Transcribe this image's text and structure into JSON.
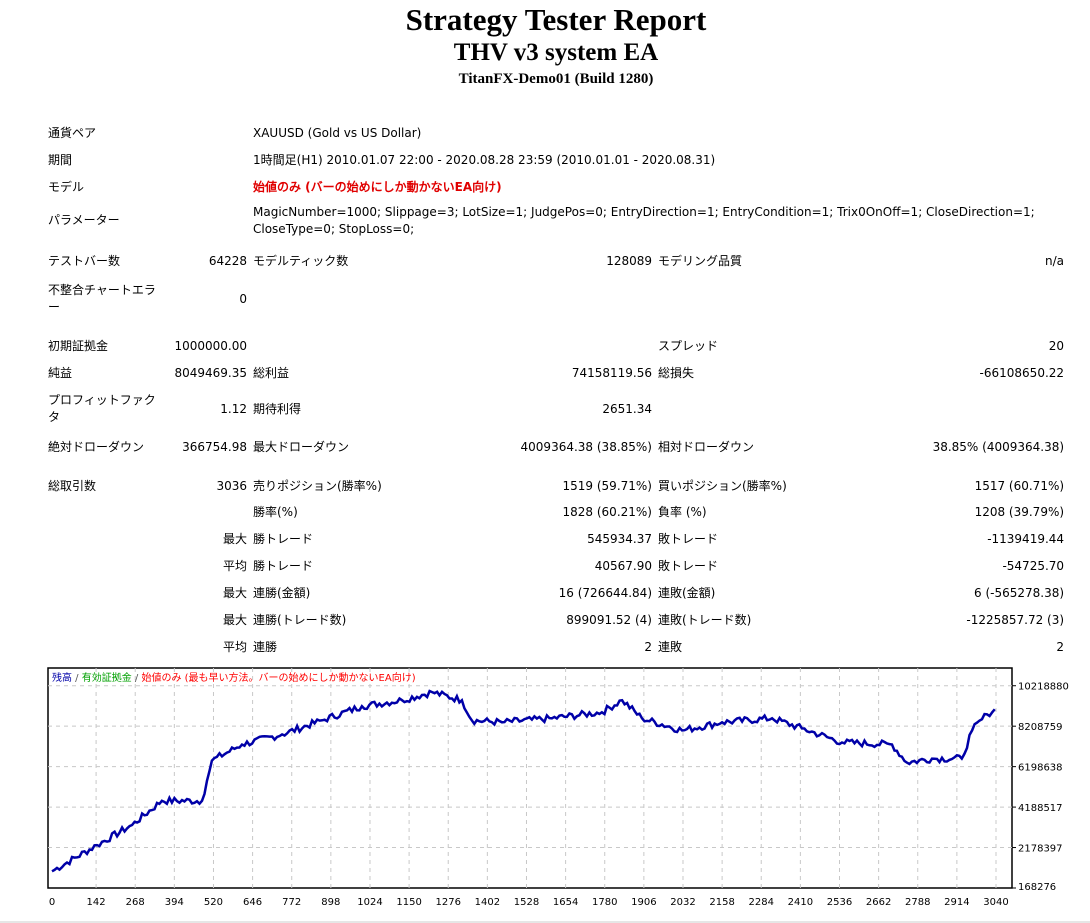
{
  "header": {
    "title": "Strategy Tester Report",
    "ea_name": "THV v3 system EA",
    "server": "TitanFX-Demo01 (Build 1280)"
  },
  "info": [
    {
      "label": "通貨ペア",
      "value": "XAUUSD (Gold vs US Dollar)"
    },
    {
      "label": "期間",
      "value": "1時間足(H1) 2010.01.07 22:00 - 2020.08.28 23:59 (2010.01.01 - 2020.08.31)"
    },
    {
      "label": "モデル",
      "value": "始値のみ (バーの始めにしか動かないEA向け)"
    },
    {
      "label": "パラメーター",
      "value": "MagicNumber=1000; Slippage=3; LotSize=1; JudgePos=0; EntryDirection=1; EntryCondition=1; Trix0OnOff=1; CloseDirection=1; CloseType=0; StopLoss=0;"
    }
  ],
  "stats": [
    [
      "テストバー数",
      "64228",
      "",
      "モデルティック数",
      "128089",
      "モデリング品質",
      "n/a"
    ],
    [
      "不整合チャートエラー",
      "0",
      "",
      "",
      "",
      "",
      ""
    ],
    [
      "初期証拠金",
      "1000000.00",
      "",
      "",
      "",
      "スプレッド",
      "20"
    ],
    [
      "純益",
      "8049469.35",
      "",
      "総利益",
      "74158119.56",
      "総損失",
      "-66108650.22"
    ],
    [
      "プロフィットファクタ",
      "1.12",
      "",
      "期待利得",
      "2651.34",
      "",
      ""
    ],
    [
      "絶対ドローダウン",
      "366754.98",
      "",
      "最大ドローダウン",
      "4009364.38 (38.85%)",
      "相対ドローダウン",
      "38.85% (4009364.38)"
    ],
    [
      "総取引数",
      "3036",
      "",
      "売りポジション(勝率%)",
      "1519 (59.71%)",
      "買いポジション(勝率%)",
      "1517 (60.71%)"
    ],
    [
      "",
      "",
      "",
      "勝率(%)",
      "1828 (60.21%)",
      "負率 (%)",
      "1208 (39.79%)"
    ],
    [
      "",
      "",
      "最大",
      "勝トレード",
      "545934.37",
      "敗トレード",
      "-1139419.44"
    ],
    [
      "",
      "",
      "平均",
      "勝トレード",
      "40567.90",
      "敗トレード",
      "-54725.70"
    ],
    [
      "",
      "",
      "最大",
      "連勝(金額)",
      "16 (726644.84)",
      "連敗(金額)",
      "6 (-565278.38)"
    ],
    [
      "",
      "",
      "最大",
      "連勝(トレード数)",
      "899091.52 (4)",
      "連敗(トレード数)",
      "-1225857.72 (3)"
    ],
    [
      "",
      "",
      "平均",
      "連勝",
      "2",
      "連敗",
      "2"
    ]
  ],
  "chart_data": {
    "type": "line",
    "legend": {
      "balance": "残高",
      "sep1": " / ",
      "equity": "有効証拠金",
      "sep2": " / ",
      "model": "始値のみ (最も早い方法。バーの始めにしか動かないEA向け)"
    },
    "legend_placement": "top-left",
    "colors": {
      "balance": "#0000a8",
      "equity": "#00a000",
      "model": "#ff0000",
      "grid": "#c8c8c8"
    },
    "x_ticks": [
      "0",
      "142",
      "268",
      "394",
      "520",
      "646",
      "772",
      "898",
      "1024",
      "1150",
      "1276",
      "1402",
      "1528",
      "1654",
      "1780",
      "1906",
      "2032",
      "2158",
      "2284",
      "2410",
      "2536",
      "2662",
      "2788",
      "2914",
      "3040"
    ],
    "y_ticks": [
      "10218880",
      "8208759",
      "6198638",
      "4188517",
      "2178397",
      "168276"
    ],
    "xlim": [
      0,
      3100
    ],
    "ylim": [
      168276,
      11100000
    ],
    "grid": true,
    "series": [
      {
        "name": "残高",
        "x": [
          0,
          145,
          258,
          354,
          483,
          499,
          515,
          612,
          741,
          870,
          998,
          1127,
          1224,
          1320,
          1352,
          1449,
          1610,
          1771,
          1836,
          1900,
          2029,
          2158,
          2319,
          2415,
          2544,
          2705,
          2753,
          2834,
          2930,
          2963,
          3011,
          3036
        ],
        "y": [
          1000000,
          2300000,
          3300000,
          4500000,
          4500000,
          5500000,
          6500000,
          7300000,
          7800000,
          8500000,
          9200000,
          9500000,
          9900000,
          9500000,
          8500000,
          8400000,
          8600000,
          8900000,
          9500000,
          8600000,
          8000000,
          8400000,
          8600000,
          8100000,
          7400000,
          7300000,
          6400000,
          6600000,
          6600000,
          8000000,
          8800000,
          9050000
        ]
      }
    ]
  }
}
